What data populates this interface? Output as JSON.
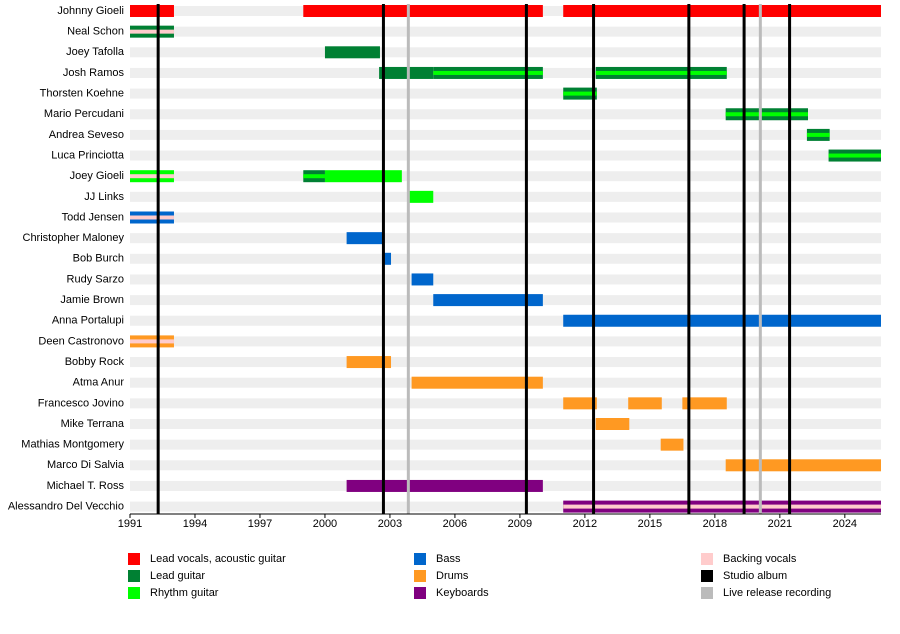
{
  "chart_data": {
    "type": "timeline",
    "xlim": [
      1991,
      2025.67
    ],
    "xticks": [
      1991,
      1994,
      1997,
      2000,
      2003,
      2006,
      2009,
      2012,
      2015,
      2018,
      2021,
      2024
    ],
    "roles": [
      {
        "name": "Lead vocals, acoustic guitar",
        "color": "#ff0000"
      },
      {
        "name": "Lead guitar",
        "color": "#008033"
      },
      {
        "name": "Rhythm guitar",
        "color": "#00ff00"
      },
      {
        "name": "Bass",
        "color": "#0066cc"
      },
      {
        "name": "Drums",
        "color": "#ff9922"
      },
      {
        "name": "Keyboards",
        "color": "#800080"
      },
      {
        "name": "Backing vocals",
        "color": "#ffcccc"
      }
    ],
    "studio_albums": {
      "name": "Studio album",
      "color": "#000000",
      "dates": [
        1992.3,
        2002.7,
        2009.3,
        2012.4,
        2016.8,
        2019.35,
        2021.45
      ]
    },
    "live_releases": {
      "name": "Live release recording",
      "color": "#bbbbbb",
      "dates": [
        2003.85,
        2020.1
      ]
    },
    "rows": [
      {
        "name": "Johnny Gioeli",
        "bars": [
          {
            "start": 1991,
            "end": 1993.03,
            "role": "Lead vocals, acoustic guitar"
          },
          {
            "start": 1999,
            "end": 2010.06,
            "role": "Lead vocals, acoustic guitar"
          },
          {
            "start": 2011,
            "end": 2025.67,
            "role": "Lead vocals, acoustic guitar"
          }
        ]
      },
      {
        "name": "Neal Schon",
        "bars": [
          {
            "start": 1991,
            "end": 1993.03,
            "role": "Lead guitar",
            "secondary": "Backing vocals"
          }
        ]
      },
      {
        "name": "Joey Tafolla",
        "bars": [
          {
            "start": 2000,
            "end": 2002.54,
            "role": "Lead guitar"
          }
        ]
      },
      {
        "name": "Josh Ramos",
        "bars": [
          {
            "start": 2002.5,
            "end": 2005,
            "role": "Lead guitar"
          },
          {
            "start": 2005,
            "end": 2010.06,
            "role": "Lead guitar",
            "secondary": "Rhythm guitar"
          },
          {
            "start": 2012.5,
            "end": 2018.55,
            "role": "Lead guitar",
            "secondary": "Rhythm guitar"
          }
        ]
      },
      {
        "name": "Thorsten Koehne",
        "bars": [
          {
            "start": 2011,
            "end": 2012.55,
            "role": "Lead guitar",
            "secondary": "Rhythm guitar"
          }
        ]
      },
      {
        "name": "Mario Percudani",
        "bars": [
          {
            "start": 2018.5,
            "end": 2022.3,
            "role": "Lead guitar",
            "secondary": "Rhythm guitar"
          }
        ]
      },
      {
        "name": "Andrea Seveso",
        "bars": [
          {
            "start": 2022.25,
            "end": 2023.3,
            "role": "Lead guitar",
            "secondary": "Rhythm guitar"
          }
        ]
      },
      {
        "name": "Luca Princiotta",
        "bars": [
          {
            "start": 2023.25,
            "end": 2025.67,
            "role": "Lead guitar",
            "secondary": "Rhythm guitar"
          }
        ]
      },
      {
        "name": "Joey Gioeli",
        "bars": [
          {
            "start": 1991,
            "end": 1993.03,
            "role": "Rhythm guitar",
            "secondary": "Backing vocals"
          },
          {
            "start": 1999,
            "end": 2000,
            "role": "Lead guitar",
            "secondary": "Rhythm guitar"
          },
          {
            "start": 2000,
            "end": 2003.55,
            "role": "Rhythm guitar"
          }
        ]
      },
      {
        "name": "JJ Links",
        "bars": [
          {
            "start": 2003.9,
            "end": 2005,
            "role": "Rhythm guitar"
          }
        ]
      },
      {
        "name": "Todd Jensen",
        "bars": [
          {
            "start": 1991,
            "end": 1993.03,
            "role": "Bass",
            "secondary": "Backing vocals"
          }
        ]
      },
      {
        "name": "Christopher Maloney",
        "bars": [
          {
            "start": 2001,
            "end": 2002.75,
            "role": "Bass"
          }
        ]
      },
      {
        "name": "Bob Burch",
        "bars": [
          {
            "start": 2002.75,
            "end": 2003.05,
            "role": "Bass"
          }
        ]
      },
      {
        "name": "Rudy Sarzo",
        "bars": [
          {
            "start": 2004,
            "end": 2005,
            "role": "Bass"
          }
        ]
      },
      {
        "name": "Jamie Brown",
        "bars": [
          {
            "start": 2005,
            "end": 2010.06,
            "role": "Bass"
          }
        ]
      },
      {
        "name": "Anna Portalupi",
        "bars": [
          {
            "start": 2011,
            "end": 2025.67,
            "role": "Bass"
          }
        ]
      },
      {
        "name": "Deen Castronovo",
        "bars": [
          {
            "start": 1991,
            "end": 1993.03,
            "role": "Drums",
            "secondary": "Backing vocals"
          }
        ]
      },
      {
        "name": "Bobby Rock",
        "bars": [
          {
            "start": 2001,
            "end": 2003.05,
            "role": "Drums"
          }
        ]
      },
      {
        "name": "Atma Anur",
        "bars": [
          {
            "start": 2004,
            "end": 2010.06,
            "role": "Drums"
          }
        ]
      },
      {
        "name": "Francesco Jovino",
        "bars": [
          {
            "start": 2011,
            "end": 2012.55,
            "role": "Drums"
          },
          {
            "start": 2014,
            "end": 2015.55,
            "role": "Drums"
          },
          {
            "start": 2016.5,
            "end": 2018.55,
            "role": "Drums"
          }
        ]
      },
      {
        "name": "Mike Terrana",
        "bars": [
          {
            "start": 2012.5,
            "end": 2014.05,
            "role": "Drums"
          }
        ]
      },
      {
        "name": "Mathias Montgomery",
        "bars": [
          {
            "start": 2015.5,
            "end": 2016.55,
            "role": "Drums"
          }
        ]
      },
      {
        "name": "Marco Di Salvia",
        "bars": [
          {
            "start": 2018.5,
            "end": 2025.67,
            "role": "Drums"
          }
        ]
      },
      {
        "name": "Michael T. Ross",
        "bars": [
          {
            "start": 2001,
            "end": 2010.06,
            "role": "Keyboards"
          }
        ]
      },
      {
        "name": "Alessandro Del Vecchio",
        "bars": [
          {
            "start": 2011,
            "end": 2025.67,
            "role": "Keyboards",
            "secondary": "Backing vocals"
          }
        ]
      }
    ]
  }
}
